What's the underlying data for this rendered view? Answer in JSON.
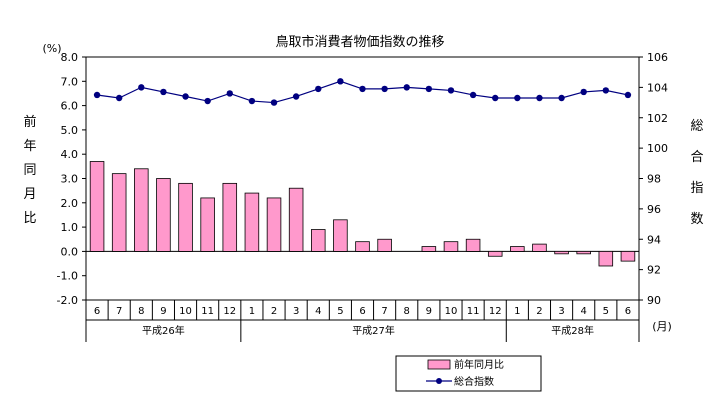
{
  "chart_data": {
    "type": "bar",
    "title": "鳥取市消費者物価指数の推移",
    "x": [
      "6",
      "7",
      "8",
      "9",
      "10",
      "11",
      "12",
      "1",
      "2",
      "3",
      "4",
      "5",
      "6",
      "7",
      "8",
      "9",
      "10",
      "11",
      "12",
      "1",
      "2",
      "3",
      "4",
      "5",
      "6"
    ],
    "year_groups": [
      {
        "label": "平成26年",
        "count": 7
      },
      {
        "label": "平成27年",
        "count": 12
      },
      {
        "label": "平成28年",
        "count": 6
      }
    ],
    "x_unit": "(月)",
    "y_left": {
      "unit": "(%)",
      "label": "前年同月比",
      "ylim": [
        -2.0,
        8.0
      ],
      "ticks": [
        "-2.0",
        "-1.0",
        "0.0",
        "1.0",
        "2.0",
        "3.0",
        "4.0",
        "5.0",
        "6.0",
        "7.0",
        "8.0"
      ]
    },
    "y_right": {
      "label": "総合指数",
      "ylim": [
        90,
        106
      ],
      "ticks": [
        "90",
        "92",
        "94",
        "96",
        "98",
        "100",
        "102",
        "104",
        "106"
      ]
    },
    "series": [
      {
        "name": "前年同月比",
        "type": "bar",
        "axis": "left",
        "color": "#ff99cc",
        "values": [
          3.7,
          3.2,
          3.4,
          3.0,
          2.8,
          2.2,
          2.8,
          2.4,
          2.2,
          2.6,
          0.9,
          1.3,
          0.4,
          0.5,
          0.0,
          0.2,
          0.4,
          0.5,
          -0.2,
          0.2,
          0.3,
          -0.1,
          -0.1,
          -0.6,
          -0.4
        ]
      },
      {
        "name": "総合指数",
        "type": "line",
        "axis": "right",
        "color": "#000080",
        "values": [
          103.5,
          103.3,
          104.0,
          103.7,
          103.4,
          103.1,
          103.6,
          103.1,
          103.0,
          103.4,
          103.9,
          104.4,
          103.9,
          103.9,
          104.0,
          103.9,
          103.8,
          103.5,
          103.3,
          103.3,
          103.3,
          103.3,
          103.7,
          103.8,
          103.5
        ]
      }
    ],
    "legend_position": "bottom-center",
    "grid": false
  }
}
